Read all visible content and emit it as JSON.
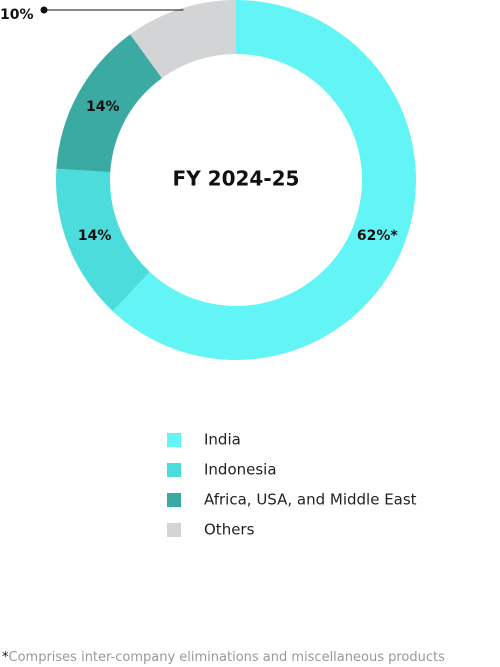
{
  "chart_data": {
    "type": "donut",
    "center_label": "FY 2024-25",
    "categories": [
      "India",
      "Indonesia",
      "Africa, USA, and Middle East",
      "Others"
    ],
    "values": [
      62,
      14,
      14,
      10
    ],
    "value_labels": [
      "62%*",
      "14%",
      "14%",
      "10%"
    ],
    "colors": [
      "#63f5f5",
      "#4ddcdc",
      "#3aaaa2",
      "#d2d4d5"
    ],
    "legend": "bottom",
    "footnote": {
      "marker": "*",
      "text": "Comprises inter-company eliminations and miscellaneous products"
    }
  }
}
